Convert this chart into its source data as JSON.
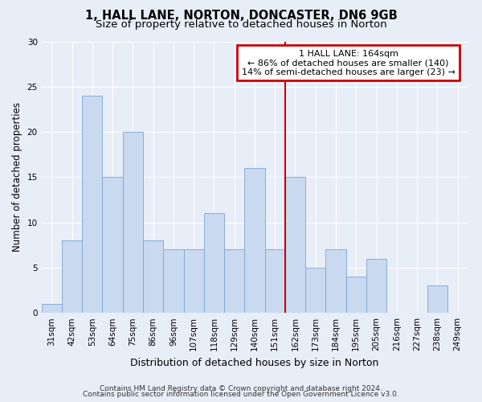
{
  "title1": "1, HALL LANE, NORTON, DONCASTER, DN6 9GB",
  "title2": "Size of property relative to detached houses in Norton",
  "xlabel": "Distribution of detached houses by size in Norton",
  "ylabel": "Number of detached properties",
  "footnote1": "Contains HM Land Registry data © Crown copyright and database right 2024.",
  "footnote2": "Contains public sector information licensed under the Open Government Licence v3.0.",
  "categories": [
    "31sqm",
    "42sqm",
    "53sqm",
    "64sqm",
    "75sqm",
    "86sqm",
    "96sqm",
    "107sqm",
    "118sqm",
    "129sqm",
    "140sqm",
    "151sqm",
    "162sqm",
    "173sqm",
    "184sqm",
    "195sqm",
    "205sqm",
    "216sqm",
    "227sqm",
    "238sqm",
    "249sqm"
  ],
  "values": [
    1,
    8,
    24,
    15,
    20,
    8,
    7,
    7,
    11,
    7,
    16,
    7,
    15,
    5,
    7,
    4,
    6,
    0,
    0,
    3,
    0
  ],
  "bar_color": "#c9d9f0",
  "bar_edge_color": "#7ba7d0",
  "background_color": "#e8eef8",
  "vline_color": "#cc0000",
  "annotation_box_color": "#cc0000",
  "ylim": [
    0,
    30
  ],
  "yticks": [
    0,
    5,
    10,
    15,
    20,
    25,
    30
  ],
  "grid_color": "#ffffff",
  "title1_fontsize": 10.5,
  "title2_fontsize": 9.5,
  "xlabel_fontsize": 9,
  "ylabel_fontsize": 8.5,
  "tick_fontsize": 7.5,
  "annot_fontsize": 8,
  "footnote_fontsize": 6.5
}
